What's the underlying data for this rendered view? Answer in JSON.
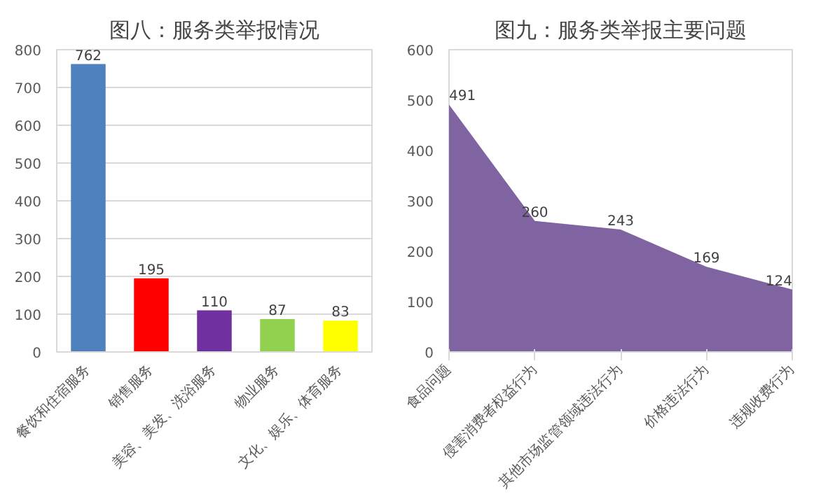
{
  "chart_data": [
    {
      "type": "bar",
      "title": "图八：服务类举报情况",
      "categories": [
        "餐饮和住宿服务",
        "销售服务",
        "美容、美发、洗浴服务",
        "物业服务",
        "文化、娱乐、体育服务"
      ],
      "values": [
        762,
        195,
        110,
        87,
        83
      ],
      "colors": [
        "#4f81bd",
        "#ff0000",
        "#7030a0",
        "#92d050",
        "#ffff00"
      ],
      "ylim": [
        0,
        800
      ],
      "yticks": [
        0,
        100,
        200,
        300,
        400,
        500,
        600,
        700,
        800
      ],
      "grid": "y",
      "data_labels": true
    },
    {
      "type": "area",
      "title": "图九：服务类举报主要问题",
      "categories": [
        "食品问题",
        "侵害消费者权益行为",
        "其他市场监管领域违法行为",
        "价格违法行为",
        "违规收费行为"
      ],
      "values": [
        491,
        260,
        243,
        169,
        124
      ],
      "color": "#8064a2",
      "ylim": [
        0,
        600
      ],
      "yticks": [
        0,
        100,
        200,
        300,
        400,
        500,
        600
      ],
      "data_labels": true
    }
  ]
}
